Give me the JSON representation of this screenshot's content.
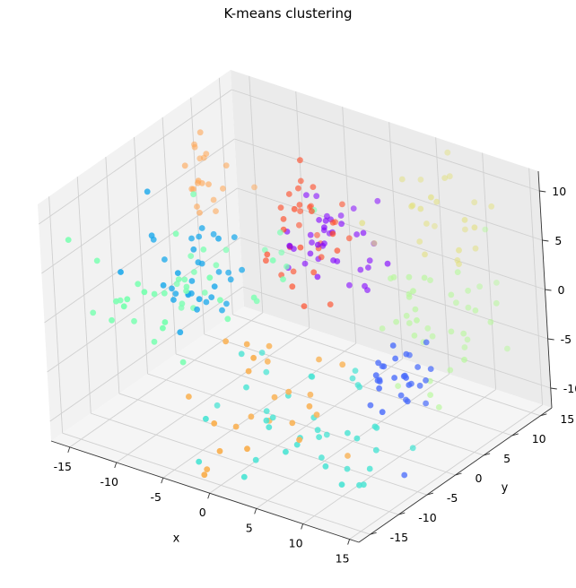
{
  "chart_data": {
    "type": "scatter",
    "projection": "3d",
    "title": "K-means clustering",
    "xlabel": "x",
    "ylabel": "y",
    "zlabel": "",
    "xlim": [
      -17,
      16
    ],
    "ylim": [
      -17,
      17
    ],
    "zlim": [
      -12,
      12
    ],
    "xticks": [
      "-15",
      "-10",
      "-5",
      "0",
      "5",
      "10",
      "15"
    ],
    "yticks": [
      "-15",
      "-10",
      "-5",
      "0",
      "5",
      "10",
      "15"
    ],
    "zticks": [
      "-10",
      "-5",
      "0",
      "5",
      "10"
    ],
    "grid": true,
    "colormap": "rainbow",
    "clusters": [
      {
        "color": "#8000ff",
        "center": [
          -1,
          8,
          3
        ],
        "spread": [
          2.5,
          2.5,
          2.5
        ],
        "n": 40
      },
      {
        "color": "#4a6cfb",
        "center": [
          12,
          -2,
          -3
        ],
        "spread": [
          1.5,
          2.5,
          2.5
        ],
        "n": 30
      },
      {
        "color": "#1ca9eb",
        "center": [
          -9,
          -4,
          3
        ],
        "spread": [
          3,
          3,
          3
        ],
        "n": 35
      },
      {
        "color": "#4ce4d4",
        "center": [
          4,
          -6,
          -8
        ],
        "spread": [
          5,
          4,
          2.5
        ],
        "n": 40
      },
      {
        "color": "#80ffb4",
        "center": [
          -7,
          -8,
          3
        ],
        "spread": [
          5,
          5,
          3
        ],
        "n": 45
      },
      {
        "color": "#b4f996",
        "center": [
          10,
          10,
          -2
        ],
        "spread": [
          3,
          4,
          3
        ],
        "n": 40
      },
      {
        "color": "#e2e079",
        "center": [
          8,
          12,
          5
        ],
        "spread": [
          3,
          3,
          3
        ],
        "n": 25
      },
      {
        "color": "#ffa756",
        "center": [
          -15,
          8,
          5
        ],
        "spread": [
          1.5,
          2,
          2
        ],
        "n": 20
      },
      {
        "color": "#f9b45a",
        "center": [
          2,
          -11,
          -4
        ],
        "spread": [
          3,
          3,
          3
        ],
        "n": 25
      },
      {
        "color": "#ff4a26",
        "center": [
          -3,
          6,
          5
        ],
        "spread": [
          3,
          3,
          4
        ],
        "n": 35
      }
    ]
  }
}
